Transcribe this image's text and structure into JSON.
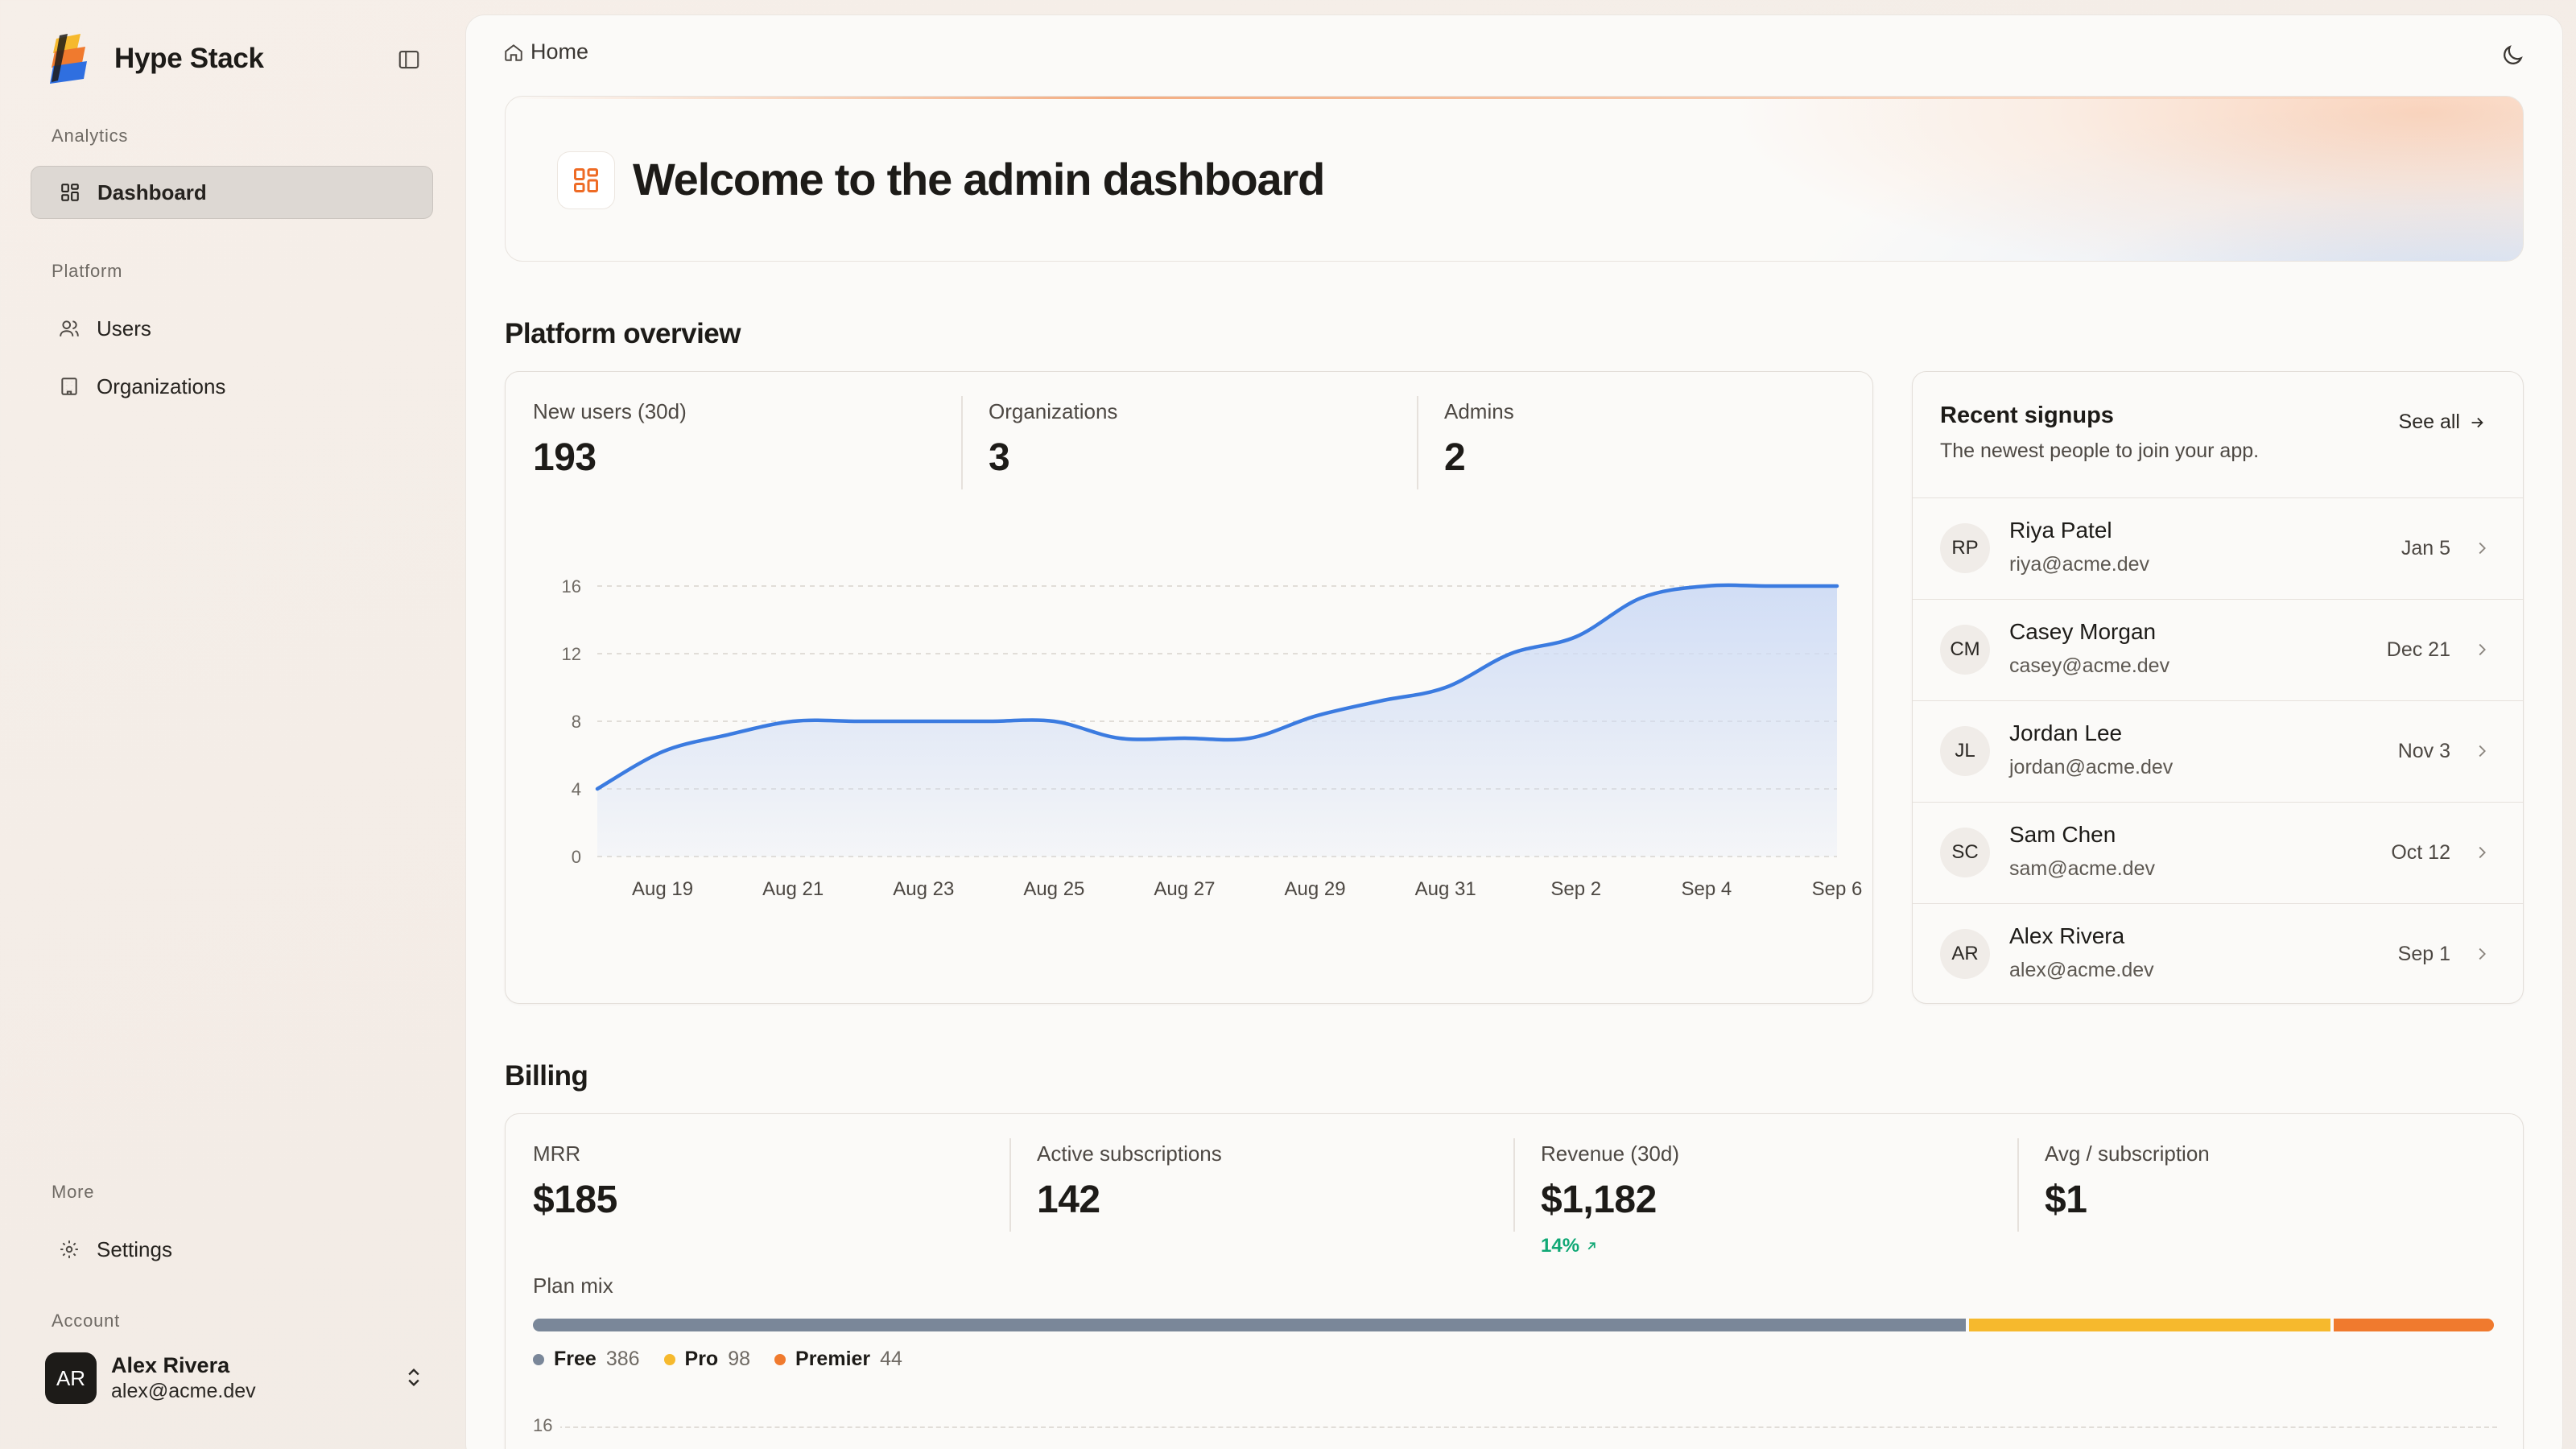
{
  "app": {
    "name": "Hype Stack"
  },
  "sidebar": {
    "sections": [
      {
        "label": "Analytics",
        "items": [
          {
            "label": "Dashboard",
            "icon": "dashboard-icon",
            "active": true
          }
        ]
      },
      {
        "label": "Platform",
        "items": [
          {
            "label": "Users",
            "icon": "users-icon"
          },
          {
            "label": "Organizations",
            "icon": "building-icon"
          }
        ]
      },
      {
        "label": "More",
        "items": [
          {
            "label": "Settings",
            "icon": "gear-icon"
          }
        ]
      },
      {
        "label": "Account"
      }
    ],
    "account": {
      "initials": "AR",
      "name": "Alex Rivera",
      "email": "alex@acme.dev"
    }
  },
  "topbar": {
    "breadcrumb": "Home"
  },
  "welcome": {
    "title": "Welcome to the admin dashboard"
  },
  "overview": {
    "title": "Platform overview",
    "stats": [
      {
        "label": "New users (30d)",
        "value": "193"
      },
      {
        "label": "Organizations",
        "value": "3"
      },
      {
        "label": "Admins",
        "value": "2"
      }
    ]
  },
  "chart_data": {
    "type": "area",
    "x": [
      "Aug 18",
      "Aug 19",
      "Aug 20",
      "Aug 21",
      "Aug 22",
      "Aug 23",
      "Aug 24",
      "Aug 25",
      "Aug 26",
      "Aug 27",
      "Aug 28",
      "Aug 29",
      "Aug 30",
      "Aug 31",
      "Sep 1",
      "Sep 2",
      "Sep 3",
      "Sep 4",
      "Sep 5",
      "Sep 6"
    ],
    "y": [
      4,
      6.2,
      7.2,
      8,
      8,
      8,
      8,
      8,
      7,
      7,
      7,
      8.3,
      9.2,
      10,
      12,
      13,
      15.3,
      16,
      16,
      16
    ],
    "xticks": [
      "Aug 19",
      "Aug 21",
      "Aug 23",
      "Aug 25",
      "Aug 27",
      "Aug 29",
      "Aug 31",
      "Sep 2",
      "Sep 4",
      "Sep 6"
    ],
    "yticks": [
      0,
      4,
      8,
      12,
      16
    ],
    "ylim": [
      0,
      16
    ],
    "grid": true,
    "line_color": "#3b7be0",
    "fill_color": "#cfdcf5"
  },
  "signups": {
    "title": "Recent signups",
    "subtitle": "The newest people to join your app.",
    "see_all": "See all",
    "rows": [
      {
        "initials": "RP",
        "name": "Riya Patel",
        "email": "riya@acme.dev",
        "date": "Jan 5"
      },
      {
        "initials": "CM",
        "name": "Casey Morgan",
        "email": "casey@acme.dev",
        "date": "Dec 21"
      },
      {
        "initials": "JL",
        "name": "Jordan Lee",
        "email": "jordan@acme.dev",
        "date": "Nov 3"
      },
      {
        "initials": "SC",
        "name": "Sam Chen",
        "email": "sam@acme.dev",
        "date": "Oct 12"
      },
      {
        "initials": "AR",
        "name": "Alex Rivera",
        "email": "alex@acme.dev",
        "date": "Sep 1"
      }
    ]
  },
  "billing": {
    "title": "Billing",
    "stats": [
      {
        "label": "MRR",
        "value": "$185"
      },
      {
        "label": "Active subscriptions",
        "value": "142"
      },
      {
        "label": "Revenue (30d)",
        "value": "$1,182",
        "change": "14%"
      },
      {
        "label": "Avg / subscription",
        "value": "$1"
      }
    ],
    "plan_mix": {
      "label": "Plan mix",
      "plans": [
        {
          "name": "Free",
          "count": "386",
          "value": 386,
          "color": "#7a8799"
        },
        {
          "name": "Pro",
          "count": "98",
          "value": 98,
          "color": "#f6b92d"
        },
        {
          "name": "Premier",
          "count": "44",
          "value": 44,
          "color": "#f07a2e"
        }
      ]
    },
    "chart_first_tick": "16"
  }
}
